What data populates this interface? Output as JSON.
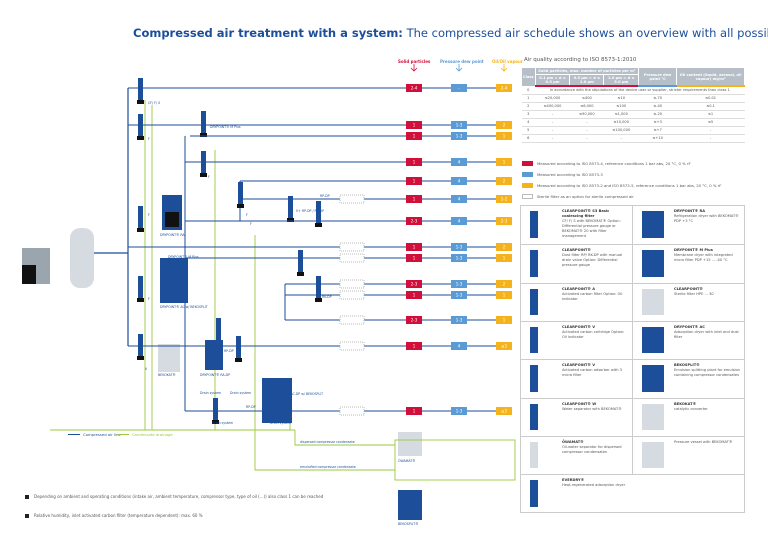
{
  "title": {
    "bold": "Compressed air treatment with a system:",
    "rest": " The compressed air schedule shows an overview with all possibilities"
  },
  "colors": {
    "blue": "#1c4e9a",
    "solid": "#d0103a",
    "dew": "#5b9bd5",
    "oil": "#f5b21b",
    "condensate": "#9bc93c",
    "grey": "#b6bfc8"
  },
  "column_headers": {
    "solid": "Solid particles",
    "dew": "Pressure dew point",
    "oil": "Oil/Oil vapour"
  },
  "quality_rows": [
    {
      "solid": "2-4",
      "dew": "-",
      "oil": "2-4"
    },
    {
      "solid": "1",
      "dew": "1-3",
      "oil": "2"
    },
    {
      "solid": "1",
      "dew": "1-3",
      "oil": "1"
    },
    {
      "solid": "1",
      "dew": "4",
      "oil": "1"
    },
    {
      "solid": "1",
      "dew": "4",
      "oil": "2"
    },
    {
      "solid": "1",
      "dew": "4",
      "oil": "1-2"
    },
    {
      "solid": "2-3",
      "dew": "4",
      "oil": "2-3"
    },
    {
      "solid": "1",
      "dew": "1-3",
      "oil": "2"
    },
    {
      "solid": "1",
      "dew": "1-3",
      "oil": "1"
    },
    {
      "solid": "2-3",
      "dew": "1-3",
      "oil": "2"
    },
    {
      "solid": "1",
      "dew": "1-3",
      "oil": "1"
    },
    {
      "solid": "2-3",
      "dew": "1-3",
      "oil": "1"
    },
    {
      "solid": "1",
      "dew": "4",
      "oil": "≤3"
    },
    {
      "solid": "1",
      "dew": "1-3",
      "oil": "≤3"
    }
  ],
  "diagram_labels": [
    "CF/ F/ S",
    "F",
    "DRYPOINT® M Plus",
    "F",
    "F",
    "DRYPOINT® RA",
    "F",
    "RP-DP",
    "V+ RP-DP / RK-DP",
    "DRYPOINT® M Plus",
    "F",
    "DRYPOINT® AC w/ BEKOSPLIT",
    "V",
    "BEKOKAT®",
    "DRYPOINT® RA-DP",
    "RP-DP",
    "Drain system",
    "Drain system",
    "RP-DP",
    "Drain system",
    "DRYPOINT® AC-DP w/ BEKOSPLIT",
    "Drain system",
    "dispersed compressor condensate",
    "emulsified compressor condensate",
    "ÖWAMAT®",
    "BEKOSPLIT®",
    "F",
    "RK-DP"
  ],
  "line_legend": {
    "air": "Compressed air line",
    "condensate": "Condensate drainage"
  },
  "iso": {
    "title": "Air quality according to ISO 8573-1:2010",
    "headers": {
      "class": "Class",
      "solid": "Solid particles, max. number of particles per m³",
      "s1": "0.1 µm < d ≤ 0.5 µm",
      "s2": "0.5 µm < d ≤ 1.0 µm",
      "s3": "1.0 µm < d ≤ 5.0 µm",
      "dew": "Pressure dew point °C",
      "oil": "Oil content (liquid, aerosol, oil vapour) mg/m³"
    },
    "class0": "In accordance with the stipulations of the device user or supplier, stricter requirements than class 1",
    "rows": [
      [
        "1",
        "≤20,000",
        "≤400",
        "≤10",
        "≤-70",
        "≤0.01"
      ],
      [
        "2",
        "≤400,000",
        "≤6,000",
        "≤100",
        "≤-40",
        "≤0.1"
      ],
      [
        "3",
        "-",
        "≤90,000",
        "≤1,000",
        "≤-20",
        "≤1"
      ],
      [
        "4",
        "-",
        "-",
        "≤10,000",
        "≤+3",
        "≤5"
      ],
      [
        "5",
        "-",
        "-",
        "≤100,000",
        "≤+7",
        "-"
      ],
      [
        "6",
        "-",
        "-",
        "-",
        "≤+10",
        "-"
      ]
    ]
  },
  "legend": [
    "Measured according to ISO 8573-4, reference conditions 1 bar abs, 20 °C, 0 % rF",
    "Measured according to ISO 8573-3",
    "Measured according to ISO 8573-2 and ISO 8573-5, reference conditions 1 bar abs, 20 °C, 0 % rF",
    "Sterile filter as an option for sterile compressed air"
  ],
  "products": [
    {
      "name": "CLEARPOINT® S3 Basic coalescing filter",
      "desc": "CF/ F/ S with BEKOMAT® Option: Differential pressure gauge or BEKOMAT® 20 with filter management"
    },
    {
      "name": "DRYPOINT® RA",
      "desc": "Refrigeration dryer with BEKOMAT® PDP +3 °C"
    },
    {
      "name": "CLEARPOINT®",
      "desc": "Dust filter RP/ RK-DP with manual drain valve Option: Differential pressure gauge"
    },
    {
      "name": "DRYPOINT® M Plus",
      "desc": "Membrane dryer with integrated micro filter PDP +15 ... -40 °C"
    },
    {
      "name": "CLEARPOINT® A",
      "desc": "Activated carbon filter Option: Oil indicator"
    },
    {
      "name": "CLEARPOINT®",
      "desc": "Sterile filter HPE ... 30"
    },
    {
      "name": "CLEARPOINT® V",
      "desc": "Activated carbon cartridge Option: Oil indicator"
    },
    {
      "name": "DRYPOINT® AC",
      "desc": "Adsorption dryer with inlet and dust filter"
    },
    {
      "name": "CLEARPOINT® V",
      "desc": "Activated carbon adsorber with 3 micro filter"
    },
    {
      "name": "BEKOSPLIT®",
      "desc": "Emulsion splitting plant for emulsion containing compressor condensates"
    },
    {
      "name": "CLEARPOINT® W",
      "desc": "Water separator with BEKOMAT®"
    },
    {
      "name": "BEKOKAT®",
      "desc": "catalytic converter"
    },
    {
      "name": "ÖWAMAT®",
      "desc": "Oil-water separator for dispersed compressor condensates"
    },
    {
      "name": "",
      "desc": "Pressure vessel with BEKOMAT®"
    },
    {
      "name": "EVERDRY®",
      "desc": "Heat-regenerated adsorption dryer"
    }
  ],
  "footnotes": [
    "Depending on ambient and operating conditions (intake air, ambient temperature, compressor type, type of oil (...)) also class 1 can be reached",
    "Relative humidity, inlet activated carbon filter (temperature dependent): max. 60 %"
  ]
}
